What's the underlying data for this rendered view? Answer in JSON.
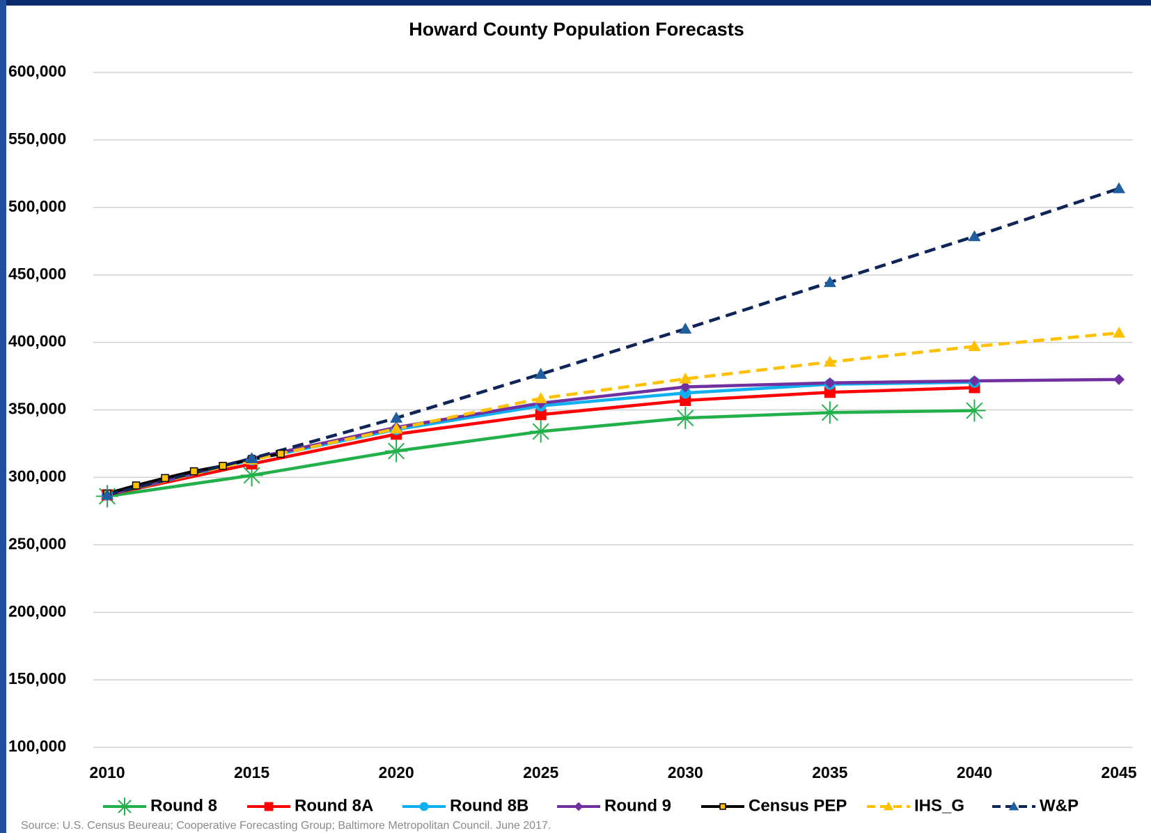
{
  "chart_data": {
    "type": "line",
    "title": "Howard County Population Forecasts",
    "source": "Source: U.S. Census Beureau; Cooperative Forecasting Group; Baltimore Metropolitan Council. June 2017.",
    "xlim": [
      2010,
      2045
    ],
    "xticks": [
      2010,
      2015,
      2020,
      2025,
      2030,
      2035,
      2040,
      2045
    ],
    "ylim": [
      100000,
      600000
    ],
    "yticks": [
      {
        "value": 100000,
        "label": "100,000"
      },
      {
        "value": 150000,
        "label": "150,000"
      },
      {
        "value": 200000,
        "label": "200,000"
      },
      {
        "value": 250000,
        "label": "250,000"
      },
      {
        "value": 300000,
        "label": "300,000"
      },
      {
        "value": 350000,
        "label": "350,000"
      },
      {
        "value": 400000,
        "label": "400,000"
      },
      {
        "value": 450000,
        "label": "450,000"
      },
      {
        "value": 500000,
        "label": "500,000"
      },
      {
        "value": 550000,
        "label": "550,000"
      },
      {
        "value": 600000,
        "label": "600,000"
      }
    ],
    "grid": true,
    "legend": "bottom",
    "series": [
      {
        "name": "Round 8",
        "color": "#22b04b",
        "marker": "asterisk",
        "dashed": false,
        "x": [
          2010,
          2015,
          2020,
          2025,
          2030,
          2035,
          2040
        ],
        "values": [
          286000,
          301500,
          319500,
          334000,
          344000,
          348000,
          349500
        ]
      },
      {
        "name": "Round 8A",
        "color": "#ff0000",
        "marker": "square",
        "dashed": false,
        "x": [
          2010,
          2015,
          2020,
          2025,
          2030,
          2035,
          2040
        ],
        "values": [
          287000,
          310000,
          332000,
          346500,
          357000,
          363000,
          366500
        ]
      },
      {
        "name": "Round 8B",
        "color": "#0eb0f0",
        "marker": "circle",
        "dashed": false,
        "x": [
          2010,
          2015,
          2020,
          2025,
          2030,
          2035,
          2040
        ],
        "values": [
          287000,
          313000,
          335500,
          353000,
          362500,
          369000,
          370500
        ]
      },
      {
        "name": "Round 9",
        "color": "#7030a0",
        "marker": "diamond",
        "dashed": false,
        "x": [
          2010,
          2015,
          2020,
          2025,
          2030,
          2035,
          2040,
          2045
        ],
        "values": [
          287000,
          314000,
          337000,
          355000,
          367000,
          370000,
          371500,
          372500
        ]
      },
      {
        "name": "Census PEP",
        "color": "#000000",
        "marker": "smallsquare",
        "dashed": false,
        "x": [
          2010,
          2011,
          2012,
          2013,
          2014,
          2015,
          2016
        ],
        "values": [
          288000,
          294000,
          299500,
          304500,
          308500,
          313500,
          317500
        ]
      },
      {
        "name": "IHS_G",
        "color": "#ffc000",
        "marker": "triangle",
        "dashed": true,
        "x": [
          2010,
          2015,
          2020,
          2025,
          2030,
          2035,
          2040,
          2045
        ],
        "values": [
          287000,
          313000,
          336000,
          358500,
          373000,
          385500,
          397000,
          407000
        ]
      },
      {
        "name": "W&P",
        "color": "#0f2557",
        "marker": "bluetriangle",
        "dashed": true,
        "x": [
          2010,
          2015,
          2020,
          2025,
          2030,
          2035,
          2040,
          2045
        ],
        "values": [
          287000,
          314000,
          344000,
          376500,
          410000,
          444500,
          478500,
          514000
        ]
      }
    ]
  }
}
